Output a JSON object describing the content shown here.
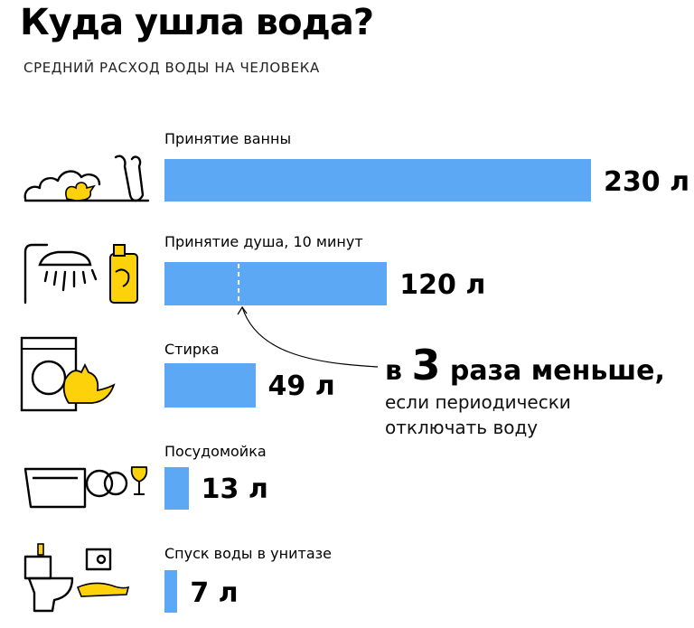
{
  "title": "Куда ушла вода?",
  "subtitle": "СРЕДНИЙ РАСХОД ВОДЫ НА ЧЕЛОВЕКА",
  "chart_data": {
    "type": "bar",
    "orientation": "horizontal",
    "title": "Куда ушла вода?",
    "subtitle": "СРЕДНИЙ РАСХОД ВОДЫ НА ЧЕЛОВЕКА",
    "unit": "л",
    "categories": [
      "Принятие ванны",
      "Принятие душа, 10 минут",
      "Стирка",
      "Посудомойка",
      "Спуск воды в унитазе"
    ],
    "values": [
      230,
      120,
      49,
      13,
      7
    ],
    "value_labels": [
      "230 л",
      "120 л",
      "49 л",
      "13 л",
      "7 л"
    ],
    "bar_color": "#5ca8f5",
    "accent_color": "#fdd20a",
    "annotation": {
      "target_category": "Принятие душа, 10 минут",
      "marker_value": 40,
      "prefix": "в",
      "number": "3",
      "suffix": "раза меньше,",
      "line1": "если периодически",
      "line2": "отключать воду"
    }
  },
  "icons": [
    "bath-icon",
    "shower-icon",
    "washing-machine-icon",
    "dishwasher-icon",
    "toilet-icon"
  ]
}
